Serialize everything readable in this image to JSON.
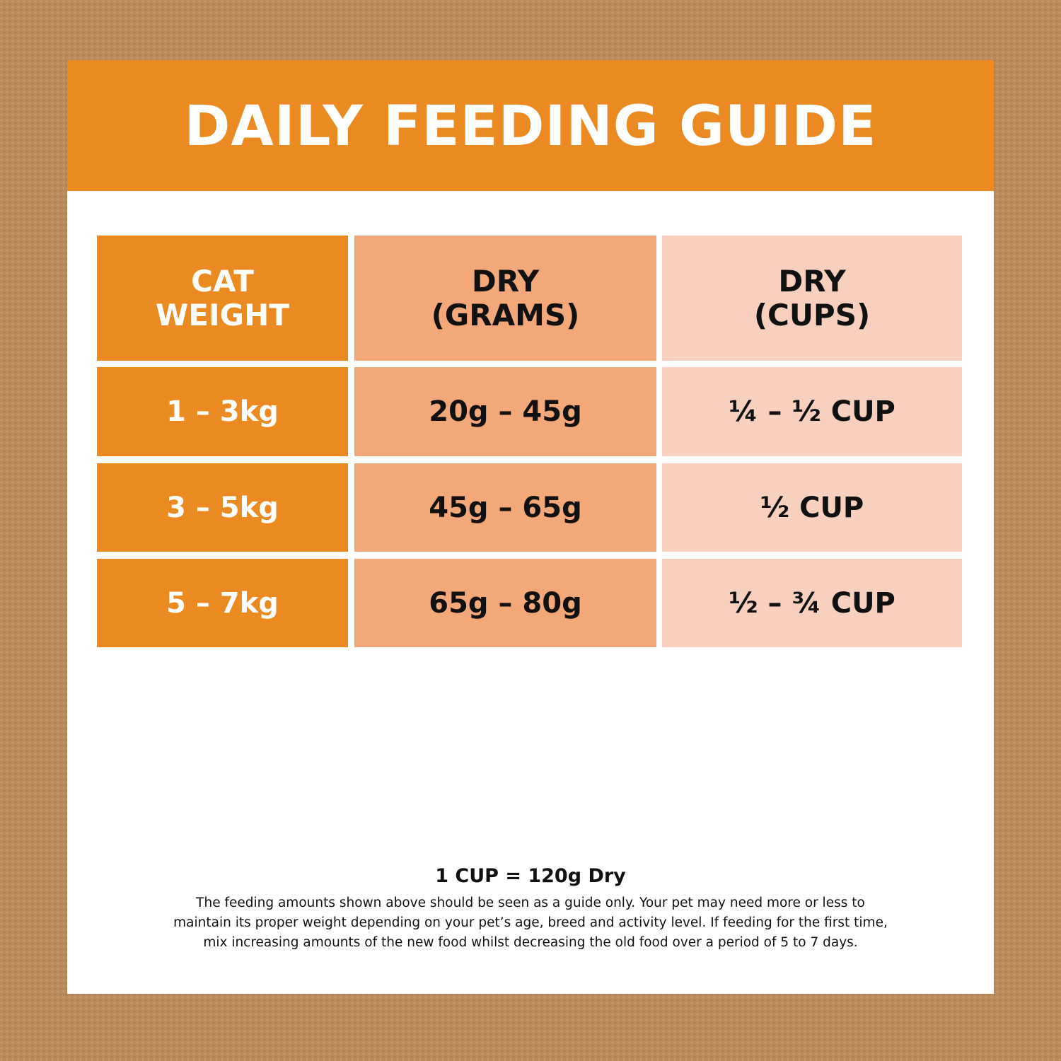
{
  "header": {
    "title": "DAILY FEEDING GUIDE"
  },
  "table": {
    "columns": [
      [
        "CAT",
        "WEIGHT"
      ],
      [
        "DRY",
        "(GRAMS)"
      ],
      [
        "DRY",
        "(CUPS)"
      ]
    ],
    "rows": [
      [
        "1 – 3kg",
        "20g – 45g",
        "¼ – ½ CUP"
      ],
      [
        "3 – 5kg",
        "45g – 65g",
        "½ CUP"
      ],
      [
        "5 – 7kg",
        "65g – 80g",
        "½ – ¾ CUP"
      ]
    ]
  },
  "footer": {
    "conversion": "1 CUP = 120g Dry",
    "note": [
      "The feeding amounts shown above should be seen as a guide only. Your pet may need more or less to",
      "maintain its proper weight depending on your pet’s age, breed and activity level. If feeding for the first time,",
      "mix increasing amounts of the new food whilst decreasing the old food over a period of 5 to 7 days."
    ]
  }
}
